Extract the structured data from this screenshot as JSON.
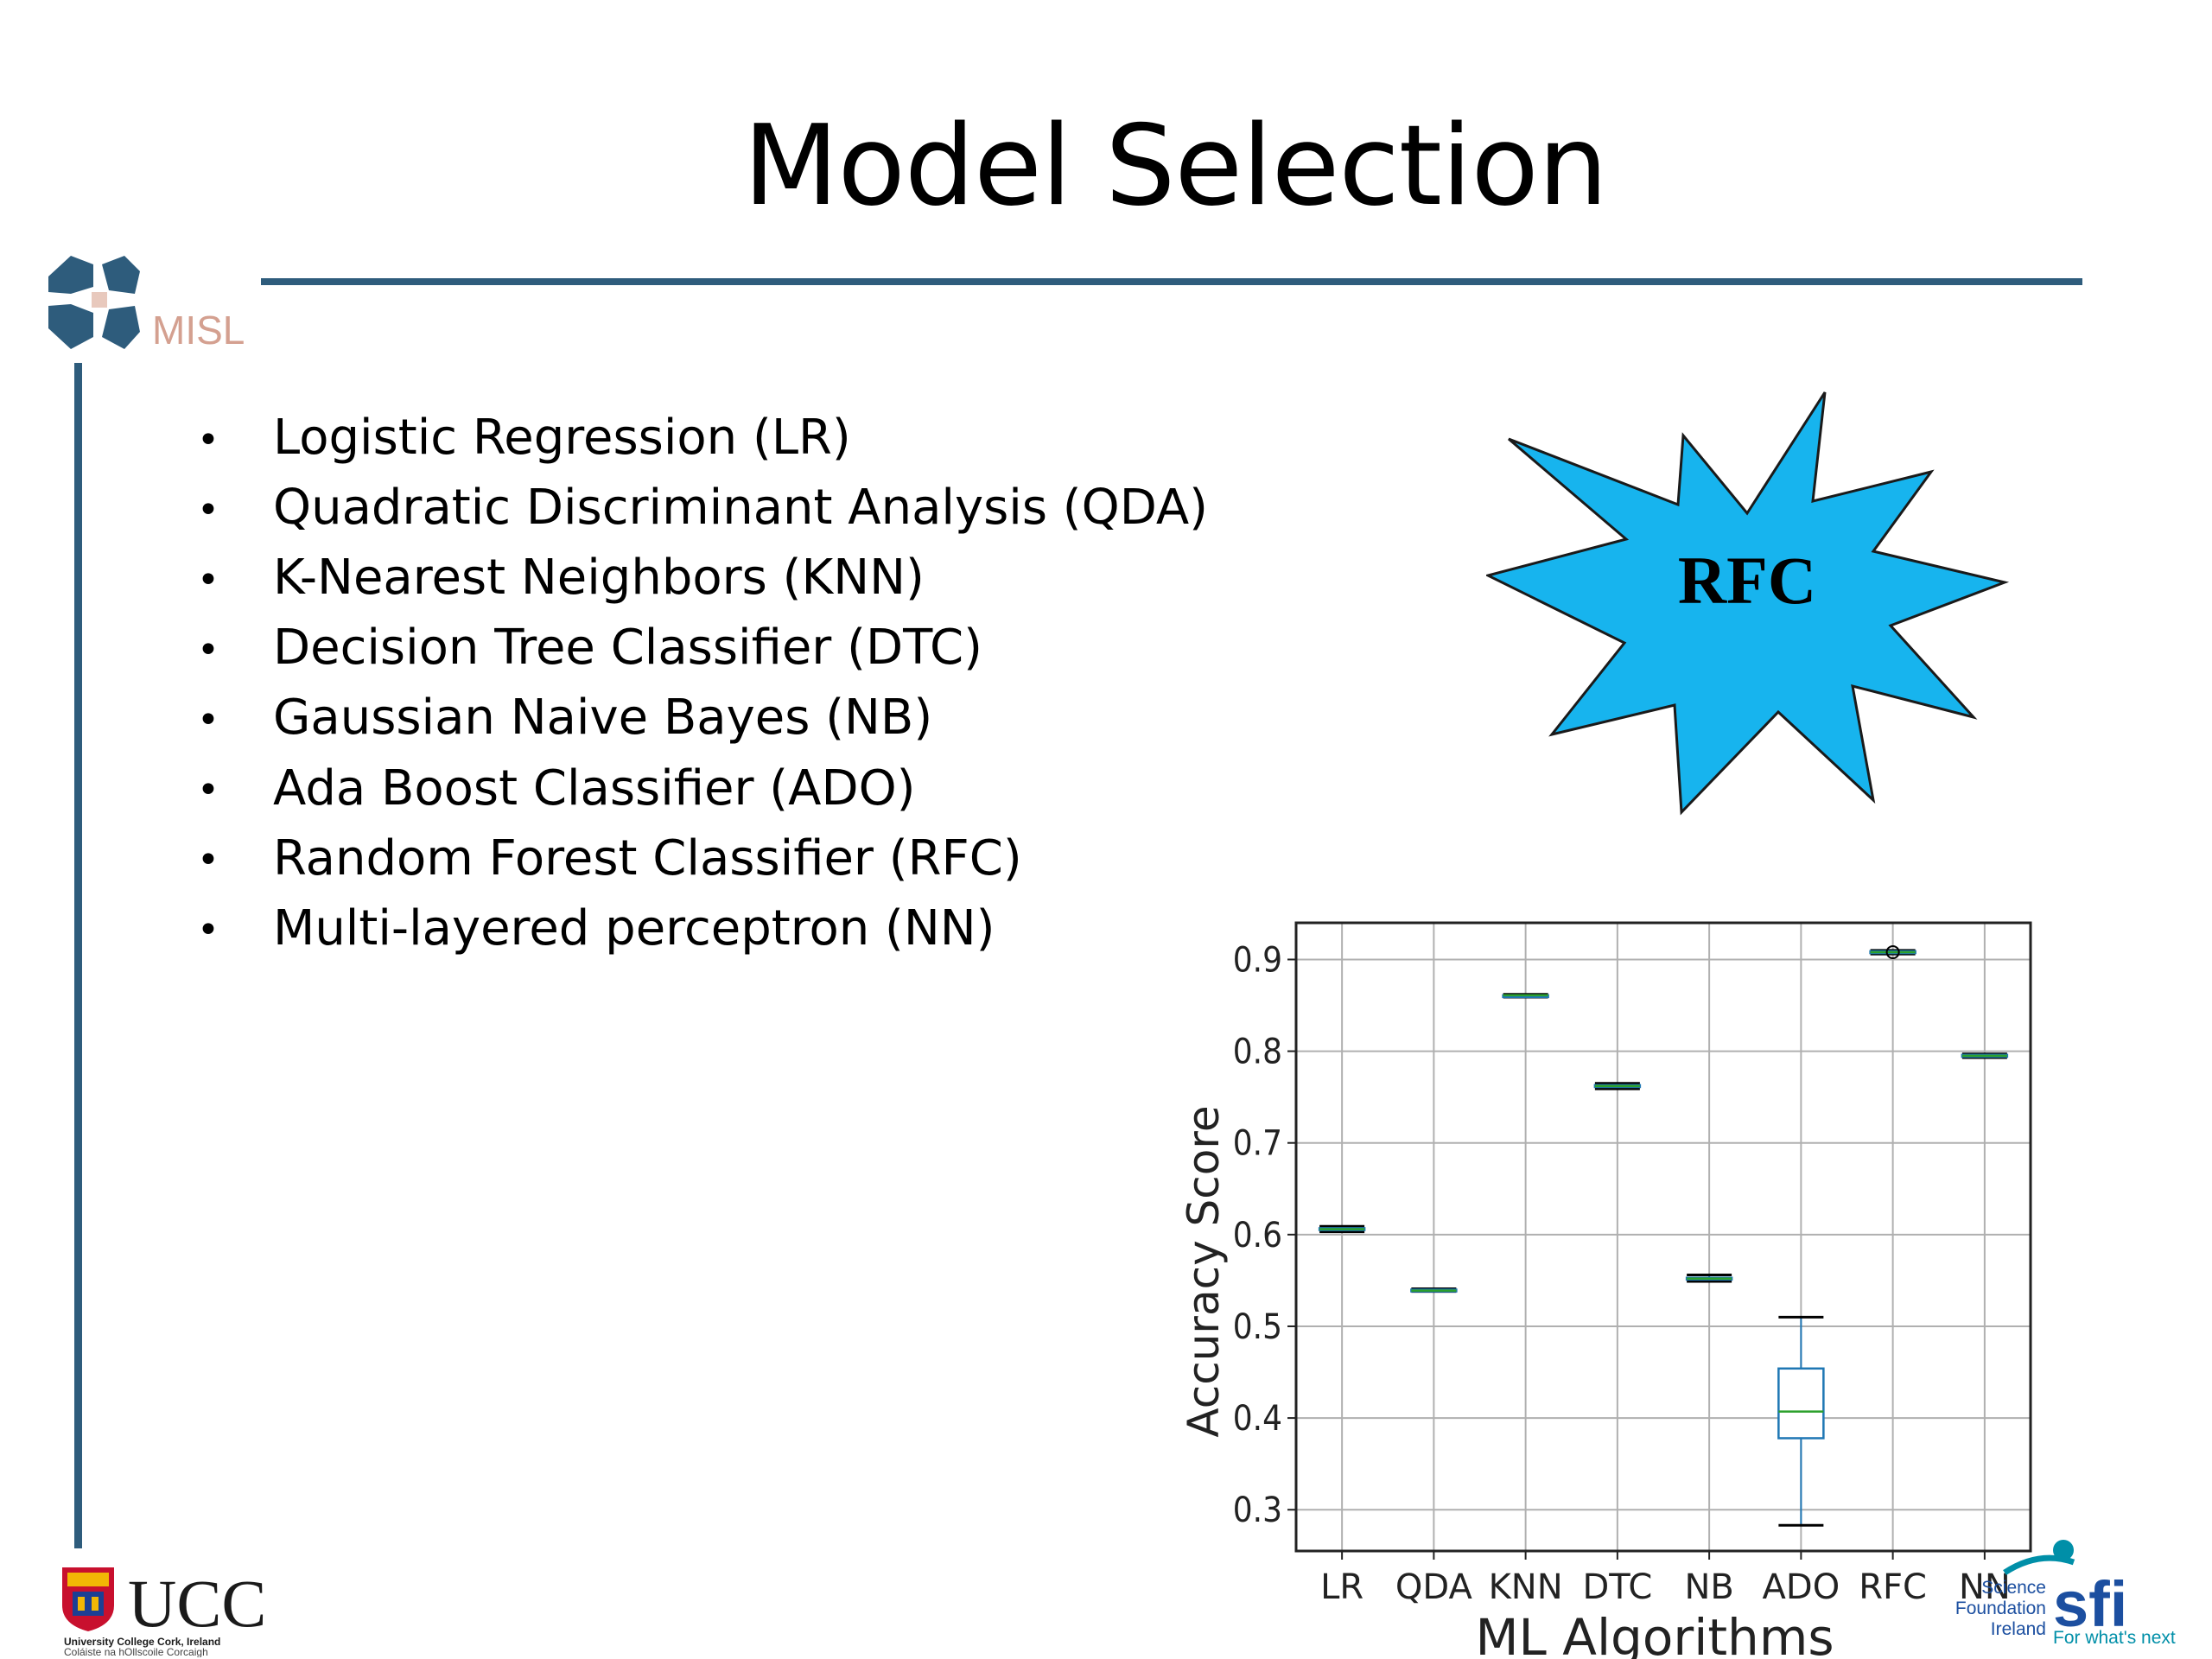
{
  "slide": {
    "title": "Model Selection",
    "bullet_glyph": "•",
    "bullets": [
      "Logistic Regression (LR)",
      "Quadratic Discriminant Analysis (QDA)",
      "K-Nearest Neighbors (KNN)",
      "Decision Tree Classifier (DTC)",
      "Gaussian Naive Bayes (NB)",
      "Ada Boost Classifier (ADO)",
      "Random Forest Classifier (RFC)",
      "Multi-layered perceptron (NN)"
    ],
    "callout": "RFC",
    "colors": {
      "accent": "#2e5c7c",
      "callout_fill": "#17b4ee",
      "misl_text": "#d4a090",
      "sfi": "#008fa8"
    }
  },
  "logos": {
    "misl": "MISL",
    "ucc": "UCC",
    "ucc_line1": "University College Cork, Ireland",
    "ucc_line2": "Coláiste na hOllscoile Corcaigh",
    "sfi_name_1": "Science",
    "sfi_name_2": "Foundation",
    "sfi_name_3": "Ireland",
    "sfi_mark": "sfi",
    "sfi_tagline": "For what's next"
  },
  "chart_data": {
    "type": "box",
    "xlabel": "ML Algorithms",
    "ylabel": "Accuracy Score",
    "categories": [
      "LR",
      "QDA",
      "KNN",
      "DTC",
      "NB",
      "ADO",
      "RFC",
      "NN"
    ],
    "ylim": [
      0.255,
      0.94
    ],
    "yticks": [
      0.3,
      0.4,
      0.5,
      0.6,
      0.7,
      0.8,
      0.9
    ],
    "ytick_labels": [
      "0.3",
      "0.4",
      "0.5",
      "0.6",
      "0.7",
      "0.8",
      "0.9"
    ],
    "grid": true,
    "boxes": [
      {
        "name": "LR",
        "min": 0.603,
        "q1": 0.605,
        "median": 0.606,
        "q3": 0.607,
        "max": 0.609
      },
      {
        "name": "QDA",
        "min": 0.538,
        "q1": 0.539,
        "median": 0.539,
        "q3": 0.54,
        "max": 0.541
      },
      {
        "name": "KNN",
        "min": 0.859,
        "q1": 0.86,
        "median": 0.861,
        "q3": 0.861,
        "max": 0.862
      },
      {
        "name": "DTC",
        "min": 0.759,
        "q1": 0.761,
        "median": 0.762,
        "q3": 0.763,
        "max": 0.765
      },
      {
        "name": "NB",
        "min": 0.549,
        "q1": 0.551,
        "median": 0.552,
        "q3": 0.553,
        "max": 0.556
      },
      {
        "name": "ADO",
        "min": 0.283,
        "q1": 0.378,
        "median": 0.407,
        "q3": 0.454,
        "max": 0.51
      },
      {
        "name": "RFC",
        "min": 0.906,
        "q1": 0.907,
        "median": 0.908,
        "q3": 0.909,
        "max": 0.91,
        "outliers": [
          0.908
        ]
      },
      {
        "name": "NN",
        "min": 0.793,
        "q1": 0.794,
        "median": 0.795,
        "q3": 0.796,
        "max": 0.797
      }
    ],
    "colors": {
      "box": "#1f77b4",
      "median": "#2ca02c",
      "whisker": "#1f77b4",
      "cap": "#000000",
      "grid": "#b0b0b0"
    }
  }
}
